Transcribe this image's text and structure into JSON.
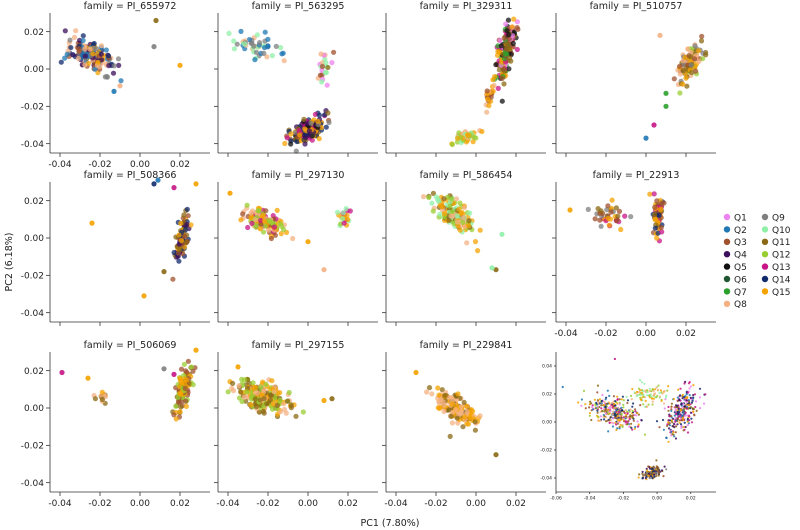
{
  "figure": {
    "xlabel": "PC1 (7.80%)",
    "ylabel": "PC2 (6.18%)"
  },
  "legend": {
    "items": [
      {
        "label": "Q1",
        "color": "#ee82ee"
      },
      {
        "label": "Q2",
        "color": "#1f77b4"
      },
      {
        "label": "Q3",
        "color": "#a0522d"
      },
      {
        "label": "Q4",
        "color": "#3b0f5c"
      },
      {
        "label": "Q5",
        "color": "#111111"
      },
      {
        "label": "Q6",
        "color": "#1e5631"
      },
      {
        "label": "Q7",
        "color": "#2ca02c"
      },
      {
        "label": "Q8",
        "color": "#f4b183"
      },
      {
        "label": "Q9",
        "color": "#7f7f7f"
      },
      {
        "label": "Q10",
        "color": "#90f0a8"
      },
      {
        "label": "Q11",
        "color": "#8b6914"
      },
      {
        "label": "Q12",
        "color": "#9acd32"
      },
      {
        "label": "Q13",
        "color": "#c71585"
      },
      {
        "label": "Q14",
        "color": "#102a6b"
      },
      {
        "label": "Q15",
        "color": "#f5a300"
      }
    ]
  },
  "chart_data": [
    {
      "type": "scatter",
      "title": "family = PI_655972",
      "xlim": [
        -0.045,
        0.035
      ],
      "ylim": [
        -0.045,
        0.03
      ],
      "xticks": [
        -0.04,
        -0.02,
        0.0,
        0.02
      ],
      "yticks": [
        -0.04,
        -0.02,
        0.0,
        0.02
      ],
      "clusters": [
        {
          "center": [
            -0.025,
            0.007
          ],
          "spread": [
            0.012,
            0.008
          ],
          "slope": -0.55,
          "n": 170,
          "colors": [
            "Q14",
            "Q2",
            "Q4",
            "Q8",
            "Q3",
            "Q9",
            "Q15"
          ]
        }
      ],
      "points": [
        [
          0.008,
          0.026,
          "Q11"
        ],
        [
          0.007,
          0.012,
          "Q9"
        ],
        [
          0.02,
          0.002,
          "Q15"
        ],
        [
          -0.01,
          -0.009,
          "Q8"
        ],
        [
          -0.013,
          -0.012,
          "Q2"
        ]
      ]
    },
    {
      "type": "scatter",
      "title": "family = PI_563295",
      "xlim": [
        -0.045,
        0.035
      ],
      "ylim": [
        -0.045,
        0.03
      ],
      "xticks": [],
      "yticks": [],
      "clusters": [
        {
          "center": [
            0.0,
            -0.033
          ],
          "spread": [
            0.01,
            0.006
          ],
          "slope": 0.9,
          "n": 160,
          "colors": [
            "Q15",
            "Q11",
            "Q3",
            "Q14",
            "Q5",
            "Q4",
            "Q9",
            "Q13"
          ]
        },
        {
          "center": [
            -0.025,
            0.012
          ],
          "spread": [
            0.014,
            0.006
          ],
          "slope": -0.4,
          "n": 50,
          "colors": [
            "Q2",
            "Q10",
            "Q8",
            "Q9"
          ]
        },
        {
          "center": [
            0.008,
            0.0
          ],
          "spread": [
            0.005,
            0.01
          ],
          "slope": 0.0,
          "n": 22,
          "colors": [
            "Q3",
            "Q11",
            "Q1",
            "Q10",
            "Q8"
          ]
        }
      ],
      "points": []
    },
    {
      "type": "scatter",
      "title": "family = PI_329311",
      "xlim": [
        -0.045,
        0.035
      ],
      "ylim": [
        -0.045,
        0.03
      ],
      "xticks": [],
      "yticks": [],
      "clusters": [
        {
          "center": [
            0.015,
            0.01
          ],
          "spread": [
            0.006,
            0.014
          ],
          "slope": 4.0,
          "n": 150,
          "colors": [
            "Q3",
            "Q15",
            "Q11",
            "Q13",
            "Q1",
            "Q7",
            "Q5"
          ]
        },
        {
          "center": [
            -0.005,
            -0.036
          ],
          "spread": [
            0.006,
            0.003
          ],
          "slope": 0.5,
          "n": 50,
          "colors": [
            "Q8",
            "Q15",
            "Q12",
            "Q10"
          ]
        },
        {
          "center": [
            0.006,
            -0.015
          ],
          "spread": [
            0.004,
            0.006
          ],
          "slope": 3.0,
          "n": 25,
          "colors": [
            "Q3",
            "Q8",
            "Q15"
          ]
        }
      ],
      "points": []
    },
    {
      "type": "scatter",
      "title": "family = PI_510757",
      "xlim": [
        -0.045,
        0.035
      ],
      "ylim": [
        -0.045,
        0.03
      ],
      "xticks": [],
      "yticks": [],
      "clusters": [
        {
          "center": [
            0.022,
            0.003
          ],
          "spread": [
            0.006,
            0.008
          ],
          "slope": 1.8,
          "n": 100,
          "colors": [
            "Q15",
            "Q3",
            "Q11",
            "Q12",
            "Q9",
            "Q8"
          ]
        }
      ],
      "points": [
        [
          0.01,
          -0.02,
          "Q7"
        ],
        [
          0.004,
          -0.03,
          "Q13"
        ],
        [
          0.0,
          -0.037,
          "Q2"
        ],
        [
          0.007,
          0.018,
          "Q8"
        ],
        [
          0.01,
          -0.013,
          "Q7"
        ]
      ]
    },
    {
      "type": "scatter",
      "title": "family = PI_508366",
      "xlim": [
        -0.045,
        0.035
      ],
      "ylim": [
        -0.045,
        0.03
      ],
      "xticks": [],
      "yticks": [
        -0.04,
        -0.02,
        0.0,
        0.02
      ],
      "clusters": [
        {
          "center": [
            0.021,
            0.0
          ],
          "spread": [
            0.004,
            0.01
          ],
          "slope": 3.0,
          "n": 90,
          "colors": [
            "Q15",
            "Q4",
            "Q3",
            "Q14",
            "Q11"
          ]
        }
      ],
      "points": [
        [
          0.009,
          0.031,
          "Q2"
        ],
        [
          0.007,
          0.029,
          "Q14"
        ],
        [
          0.017,
          0.027,
          "Q13"
        ],
        [
          0.028,
          0.029,
          "Q15"
        ],
        [
          -0.024,
          0.008,
          "Q15"
        ],
        [
          0.012,
          -0.018,
          "Q11"
        ],
        [
          0.002,
          -0.031,
          "Q15"
        ]
      ]
    },
    {
      "type": "scatter",
      "title": "family = PI_297130",
      "xlim": [
        -0.045,
        0.035
      ],
      "ylim": [
        -0.045,
        0.03
      ],
      "xticks": [],
      "yticks": [],
      "clusters": [
        {
          "center": [
            -0.022,
            0.009
          ],
          "spread": [
            0.01,
            0.006
          ],
          "slope": -0.6,
          "n": 130,
          "colors": [
            "Q15",
            "Q8",
            "Q12",
            "Q3",
            "Q13"
          ]
        },
        {
          "center": [
            0.018,
            0.011
          ],
          "spread": [
            0.003,
            0.006
          ],
          "slope": 0.0,
          "n": 20,
          "colors": [
            "Q15",
            "Q10",
            "Q12",
            "Q13"
          ]
        }
      ],
      "points": [
        [
          -0.039,
          0.024,
          "Q15"
        ],
        [
          0.008,
          -0.017,
          "Q8"
        ],
        [
          0.0,
          -0.002,
          "Q15"
        ]
      ]
    },
    {
      "type": "scatter",
      "title": "family = PI_586454",
      "xlim": [
        -0.045,
        0.035
      ],
      "ylim": [
        -0.045,
        0.03
      ],
      "xticks": [],
      "yticks": [],
      "clusters": [
        {
          "center": [
            -0.012,
            0.013
          ],
          "spread": [
            0.01,
            0.008
          ],
          "slope": -1.0,
          "n": 140,
          "colors": [
            "Q15",
            "Q12",
            "Q10",
            "Q11",
            "Q8"
          ]
        }
      ],
      "points": [
        [
          0.01,
          -0.017,
          "Q11"
        ],
        [
          0.013,
          0.002,
          "Q10"
        ],
        [
          0.008,
          -0.016,
          "Q10"
        ]
      ]
    },
    {
      "type": "scatter",
      "title": "family = PI_22913",
      "xlim": [
        -0.045,
        0.035
      ],
      "ylim": [
        -0.045,
        0.03
      ],
      "xticks": [
        -0.04,
        -0.02,
        0.0,
        0.02
      ],
      "yticks": [],
      "clusters": [
        {
          "center": [
            0.006,
            0.011
          ],
          "spread": [
            0.003,
            0.01
          ],
          "slope": 0.0,
          "n": 60,
          "colors": [
            "Q15",
            "Q3",
            "Q13",
            "Q11",
            "Q14"
          ]
        },
        {
          "center": [
            -0.02,
            0.012
          ],
          "spread": [
            0.01,
            0.006
          ],
          "slope": 0.0,
          "n": 40,
          "colors": [
            "Q15",
            "Q11",
            "Q13",
            "Q3",
            "Q9"
          ]
        }
      ],
      "points": [
        [
          -0.038,
          0.015,
          "Q15"
        ]
      ]
    },
    {
      "type": "scatter",
      "title": "family = PI_506069",
      "xlim": [
        -0.045,
        0.035
      ],
      "ylim": [
        -0.045,
        0.03
      ],
      "xticks": [
        -0.04,
        -0.02,
        0.0,
        0.02
      ],
      "yticks": [
        -0.04,
        -0.02,
        0.0,
        0.02
      ],
      "clusters": [
        {
          "center": [
            0.022,
            0.01
          ],
          "spread": [
            0.004,
            0.01
          ],
          "slope": 3.0,
          "n": 110,
          "colors": [
            "Q15",
            "Q3",
            "Q11",
            "Q12"
          ]
        },
        {
          "center": [
            -0.02,
            0.006
          ],
          "spread": [
            0.004,
            0.004
          ],
          "slope": 0.0,
          "n": 12,
          "colors": [
            "Q15",
            "Q11",
            "Q8"
          ]
        }
      ],
      "points": [
        [
          -0.039,
          0.019,
          "Q13"
        ],
        [
          -0.026,
          0.016,
          "Q15"
        ],
        [
          0.017,
          0.018,
          "Q13"
        ],
        [
          0.012,
          0.021,
          "Q9"
        ],
        [
          0.028,
          0.031,
          "Q15"
        ]
      ]
    },
    {
      "type": "scatter",
      "title": "family = PI_297155",
      "xlim": [
        -0.045,
        0.035
      ],
      "ylim": [
        -0.045,
        0.03
      ],
      "xticks": [
        -0.04,
        -0.02,
        0.0,
        0.02
      ],
      "yticks": [],
      "clusters": [
        {
          "center": [
            -0.022,
            0.006
          ],
          "spread": [
            0.014,
            0.008
          ],
          "slope": -0.5,
          "n": 190,
          "colors": [
            "Q15",
            "Q11",
            "Q12",
            "Q8"
          ]
        }
      ],
      "points": [
        [
          0.012,
          0.005,
          "Q11"
        ],
        [
          0.008,
          0.004,
          "Q15"
        ],
        [
          -0.035,
          0.022,
          "Q15"
        ]
      ]
    },
    {
      "type": "scatter",
      "title": "family = PI_229841",
      "xlim": [
        -0.045,
        0.035
      ],
      "ylim": [
        -0.045,
        0.03
      ],
      "xticks": [
        -0.04,
        -0.02,
        0.0,
        0.02
      ],
      "yticks": [],
      "clusters": [
        {
          "center": [
            -0.01,
            0.0
          ],
          "spread": [
            0.01,
            0.007
          ],
          "slope": -0.9,
          "n": 150,
          "colors": [
            "Q15",
            "Q11",
            "Q8"
          ]
        }
      ],
      "points": [
        [
          -0.03,
          0.019,
          "Q15"
        ],
        [
          0.01,
          -0.025,
          "Q11"
        ]
      ]
    },
    {
      "type": "scatter",
      "title": "",
      "xlim": [
        -0.06,
        0.035
      ],
      "ylim": [
        -0.05,
        0.05
      ],
      "xticks": [
        -0.06,
        -0.04,
        -0.02,
        0.0,
        0.02
      ],
      "yticks": [
        -0.04,
        -0.02,
        0.0,
        0.02,
        0.04
      ],
      "small_ticks": true,
      "tiny_markers": true,
      "clusters": [
        {
          "center": [
            -0.025,
            0.007
          ],
          "spread": [
            0.015,
            0.01
          ],
          "slope": -0.55,
          "n": 320,
          "colors": [
            "Q15",
            "Q14",
            "Q2",
            "Q8",
            "Q3",
            "Q11",
            "Q12",
            "Q13",
            "Q1"
          ]
        },
        {
          "center": [
            0.015,
            0.008
          ],
          "spread": [
            0.01,
            0.014
          ],
          "slope": 1.5,
          "n": 260,
          "colors": [
            "Q15",
            "Q3",
            "Q11",
            "Q13",
            "Q14",
            "Q4",
            "Q1",
            "Q2"
          ]
        },
        {
          "center": [
            -0.003,
            -0.036
          ],
          "spread": [
            0.006,
            0.004
          ],
          "slope": 0.6,
          "n": 130,
          "colors": [
            "Q15",
            "Q14",
            "Q4",
            "Q3",
            "Q11",
            "Q9"
          ]
        },
        {
          "center": [
            -0.005,
            0.02
          ],
          "spread": [
            0.012,
            0.008
          ],
          "slope": 0.0,
          "n": 90,
          "colors": [
            "Q15",
            "Q12",
            "Q10",
            "Q8"
          ]
        }
      ],
      "points": [
        [
          -0.056,
          0.025,
          "Q2"
        ],
        [
          -0.025,
          0.045,
          "Q13"
        ]
      ]
    }
  ]
}
